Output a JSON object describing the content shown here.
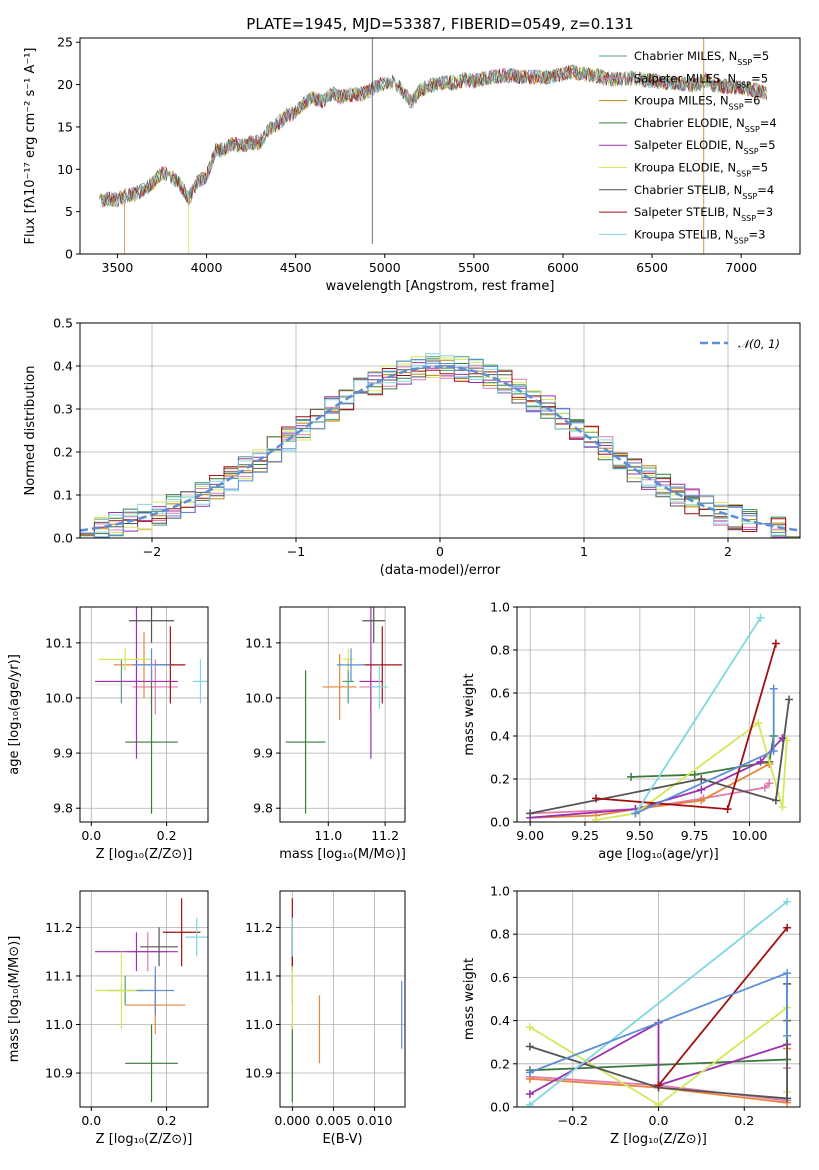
{
  "figure": {
    "title": "PLATE=1945, MJD=53387, FIBERID=0549, z=0.131"
  },
  "chart_data": [
    {
      "id": "spectrum",
      "type": "line",
      "xlabel": "wavelength [Angstrom, rest frame]",
      "ylabel": "Flux [fλ10⁻¹⁷ erg cm⁻² s⁻¹ A⁻¹]",
      "xlim": [
        3290,
        7330
      ],
      "ylim": [
        0,
        25.5
      ],
      "xticks": [
        3500,
        4000,
        4500,
        5000,
        5500,
        6000,
        6500,
        7000
      ],
      "yticks": [
        0,
        5,
        10,
        15,
        20,
        25
      ],
      "grid": false,
      "legend_position": "top-right",
      "legend": [
        {
          "name": "Chabrier MILES, N_SSP=5",
          "label_main": "Chabrier MILES, N",
          "label_sub": "SSP",
          "label_tail": "=5",
          "color": "#50a070"
        },
        {
          "name": "Salpeter MILES, N_SSP=5",
          "label_main": "Salpeter MILES, N",
          "label_sub": "SSP",
          "label_tail": "=5",
          "color": "#e07bb0"
        },
        {
          "name": "Kroupa MILES, N_SSP=6",
          "label_main": "Kroupa MILES, N",
          "label_sub": "SSP",
          "label_tail": "=6",
          "color": "#b8860b"
        },
        {
          "name": "Chabrier ELODIE, N_SSP=4",
          "label_main": "Chabrier ELODIE, N",
          "label_sub": "SSP",
          "label_tail": "=4",
          "color": "#3c7a3c"
        },
        {
          "name": "Salpeter ELODIE, N_SSP=5",
          "label_main": "Salpeter ELODIE, N",
          "label_sub": "SSP",
          "label_tail": "=5",
          "color": "#9b30b0"
        },
        {
          "name": "Kroupa ELODIE, N_SSP=5",
          "label_main": "Kroupa ELODIE, N",
          "label_sub": "SSP",
          "label_tail": "=5",
          "color": "#d4e85a"
        },
        {
          "name": "Chabrier STELIB, N_SSP=4",
          "label_main": "Chabrier STELIB, N",
          "label_sub": "SSP",
          "label_tail": "=4",
          "color": "#555555"
        },
        {
          "name": "Salpeter STELIB, N_SSP=3",
          "label_main": "Salpeter STELIB, N",
          "label_sub": "SSP",
          "label_tail": "=3",
          "color": "#a01010"
        },
        {
          "name": "Kroupa STELIB, N_SSP=3",
          "label_main": "Kroupa STELIB, N",
          "label_sub": "SSP",
          "label_tail": "=3",
          "color": "#80d8e0"
        }
      ],
      "x": [
        3400,
        3450,
        3500,
        3550,
        3600,
        3650,
        3700,
        3750,
        3800,
        3850,
        3900,
        3950,
        4000,
        4050,
        4100,
        4150,
        4200,
        4250,
        4300,
        4350,
        4400,
        4450,
        4500,
        4550,
        4600,
        4650,
        4700,
        4750,
        4800,
        4850,
        4900,
        4950,
        5000,
        5050,
        5100,
        5150,
        5200,
        5250,
        5300,
        5350,
        5400,
        5450,
        5500,
        5550,
        5600,
        5650,
        5700,
        5750,
        5800,
        5850,
        5900,
        5950,
        6000,
        6050,
        6100,
        6150,
        6200,
        6250,
        6300,
        6350,
        6400,
        6450,
        6500,
        6550,
        6600,
        6650,
        6700,
        6750,
        6800,
        6850,
        6900,
        6950,
        7000,
        7050,
        7100,
        7150
      ],
      "flux_mean": [
        6.2,
        6.5,
        6.4,
        6.9,
        7.1,
        7.6,
        8.4,
        9.6,
        9.2,
        8.3,
        6.5,
        8.6,
        9.2,
        12.2,
        12.4,
        13.0,
        12.8,
        13.1,
        13.2,
        14.6,
        15.4,
        16.3,
        16.7,
        17.8,
        18.5,
        18.0,
        19.0,
        18.5,
        18.8,
        18.8,
        19.1,
        19.8,
        20.2,
        20.3,
        19.2,
        17.9,
        19.4,
        19.8,
        20.1,
        20.3,
        20.2,
        20.6,
        20.4,
        20.7,
        20.9,
        21.0,
        21.1,
        20.9,
        20.9,
        20.9,
        20.8,
        21.0,
        21.2,
        21.5,
        21.3,
        21.1,
        21.0,
        20.7,
        20.6,
        20.7,
        20.8,
        20.5,
        20.5,
        20.3,
        20.2,
        20.1,
        20.0,
        19.9,
        20.5,
        19.9,
        19.8,
        19.8,
        19.6,
        19.5,
        19.2,
        18.9
      ]
    },
    {
      "id": "residuals",
      "type": "step",
      "xlabel": "(data-model)/error",
      "ylabel": "Normed distribution",
      "xlim": [
        -2.5,
        2.5
      ],
      "ylim": [
        0,
        0.5
      ],
      "xticks": [
        -2,
        -1,
        0,
        1,
        2
      ],
      "yticks": [
        0.0,
        0.1,
        0.2,
        0.3,
        0.4,
        0.5
      ],
      "grid": true,
      "legend_position": "top-right",
      "reference": {
        "name": "𝒩(0, 1)",
        "mean": 0,
        "sigma": 1,
        "color": "#5b8fd6"
      },
      "bin_width": 0.1
    },
    {
      "id": "age-vs-z",
      "type": "errorbar",
      "xlabel": "Z [log₁₀(Z/Z⊙)]",
      "ylabel": "age  [log₁₀(age/yr)]",
      "xlim": [
        -0.03,
        0.31
      ],
      "ylim": [
        9.775,
        10.165
      ],
      "xticks": [
        0.0,
        0.2
      ],
      "yticks": [
        9.8,
        9.9,
        10.0,
        10.1
      ],
      "points": [
        {
          "color": "#50a070",
          "x": 0.08,
          "xerr": 0.06,
          "y": 10.03,
          "yerr": 0.04
        },
        {
          "color": "#e07bb0",
          "x": 0.17,
          "xerr": 0.06,
          "y": 10.02,
          "yerr": 0.05
        },
        {
          "color": "#e8853a",
          "x": 0.14,
          "xerr": 0.08,
          "y": 10.06,
          "yerr": 0.06
        },
        {
          "color": "#3c7a3c",
          "x": 0.16,
          "xerr": 0.07,
          "y": 9.92,
          "yerr": 0.13
        },
        {
          "color": "#9b30b0",
          "x": 0.12,
          "xerr": 0.11,
          "y": 10.03,
          "yerr": 0.14
        },
        {
          "color": "#d4e85a",
          "x": 0.09,
          "xerr": 0.07,
          "y": 10.07,
          "yerr": 0.02
        },
        {
          "color": "#555555",
          "x": 0.16,
          "xerr": 0.06,
          "y": 10.14,
          "yerr": 0.04
        },
        {
          "color": "#a01010",
          "x": 0.21,
          "xerr": 0.04,
          "y": 10.06,
          "yerr": 0.07
        },
        {
          "color": "#80d8e0",
          "x": 0.29,
          "xerr": 0.02,
          "y": 10.03,
          "yerr": 0.04
        },
        {
          "color": "#5b8fd6",
          "x": 0.16,
          "xerr": 0.05,
          "y": 10.06,
          "yerr": 0.03
        }
      ]
    },
    {
      "id": "age-vs-mass",
      "type": "errorbar",
      "xlabel": "mass [log₁₀(M/M⊙)]",
      "ylabel": "",
      "xlim": [
        10.83,
        11.27
      ],
      "ylim": [
        9.775,
        10.165
      ],
      "xticks": [
        11.0,
        11.2
      ],
      "yticks": [
        9.8,
        9.9,
        10.0,
        10.1
      ],
      "points": [
        {
          "color": "#50a070",
          "x": 11.07,
          "xerr": 0.02,
          "y": 10.03,
          "yerr": 0.04
        },
        {
          "color": "#e07bb0",
          "x": 11.15,
          "xerr": 0.04,
          "y": 10.02,
          "yerr": 0.05
        },
        {
          "color": "#e8853a",
          "x": 11.04,
          "xerr": 0.06,
          "y": 10.02,
          "yerr": 0.06
        },
        {
          "color": "#3c7a3c",
          "x": 10.92,
          "xerr": 0.07,
          "y": 9.92,
          "yerr": 0.13
        },
        {
          "color": "#9b30b0",
          "x": 11.15,
          "xerr": 0.04,
          "y": 10.03,
          "yerr": 0.14
        },
        {
          "color": "#d4e85a",
          "x": 11.07,
          "xerr": 0.02,
          "y": 10.07,
          "yerr": 0.02
        },
        {
          "color": "#555555",
          "x": 11.16,
          "xerr": 0.04,
          "y": 10.14,
          "yerr": 0.04
        },
        {
          "color": "#a01010",
          "x": 11.19,
          "xerr": 0.07,
          "y": 10.06,
          "yerr": 0.07
        },
        {
          "color": "#80d8e0",
          "x": 11.18,
          "xerr": 0.03,
          "y": 10.02,
          "yerr": 0.04
        },
        {
          "color": "#5b8fd6",
          "x": 11.08,
          "xerr": 0.05,
          "y": 10.06,
          "yerr": 0.03
        }
      ]
    },
    {
      "id": "mass-weight-vs-age",
      "type": "line",
      "xlabel": "age  [log₁₀(age/yr)]",
      "ylabel": "mass weight",
      "xlim": [
        8.94,
        10.23
      ],
      "ylim": [
        0,
        1.0
      ],
      "xticks": [
        9.0,
        9.25,
        9.5,
        9.75,
        10.0
      ],
      "yticks": [
        0.0,
        0.2,
        0.4,
        0.6,
        0.8,
        1.0
      ],
      "grid": true,
      "series": [
        {
          "color": "#3c7a3c",
          "x": [
            9.46,
            9.75,
            10.09,
            10.11
          ],
          "y": [
            0.21,
            0.22,
            0.28,
            0.4
          ]
        },
        {
          "color": "#e07bb0",
          "x": [
            9.0,
            9.48,
            9.79,
            10.07,
            10.09
          ],
          "y": [
            0.04,
            0.06,
            0.11,
            0.16,
            0.18
          ]
        },
        {
          "color": "#e8853a",
          "x": [
            9.0,
            9.3,
            9.48,
            9.78,
            10.09
          ],
          "y": [
            0.02,
            0.03,
            0.06,
            0.1,
            0.27
          ]
        },
        {
          "color": "#9b30b0",
          "x": [
            9.0,
            9.48,
            9.78,
            10.05,
            10.15
          ],
          "y": [
            0.02,
            0.06,
            0.15,
            0.28,
            0.39
          ]
        },
        {
          "color": "#d4e85a",
          "x": [
            9.3,
            9.48,
            10.04,
            10.15,
            10.17
          ],
          "y": [
            0.01,
            0.04,
            0.46,
            0.07,
            0.38
          ]
        },
        {
          "color": "#555555",
          "x": [
            9.0,
            9.78,
            10.12,
            10.18
          ],
          "y": [
            0.04,
            0.2,
            0.1,
            0.57
          ]
        },
        {
          "color": "#a01010",
          "x": [
            9.3,
            9.9,
            10.12
          ],
          "y": [
            0.11,
            0.06,
            0.83
          ]
        },
        {
          "color": "#80d8e0",
          "x": [
            9.48,
            10.05
          ],
          "y": [
            0.04,
            0.95
          ]
        },
        {
          "color": "#5b8fd6",
          "x": [
            9.48,
            10.11,
            10.11
          ],
          "y": [
            0.04,
            0.33,
            0.62
          ]
        }
      ]
    },
    {
      "id": "mass-vs-z",
      "type": "errorbar",
      "xlabel": "Z [log₁₀(Z/Z⊙)]",
      "ylabel": "mass [log₁₀(M/M⊙)]",
      "xlim": [
        -0.03,
        0.31
      ],
      "ylim": [
        10.83,
        11.275
      ],
      "xticks": [
        0.0,
        0.2
      ],
      "yticks": [
        10.9,
        11.0,
        11.1,
        11.2
      ],
      "points": [
        {
          "color": "#50a070",
          "x": 0.09,
          "xerr": 0.05,
          "y": 11.07,
          "yerr": 0.03
        },
        {
          "color": "#e07bb0",
          "x": 0.15,
          "xerr": 0.05,
          "y": 11.15,
          "yerr": 0.04
        },
        {
          "color": "#e8853a",
          "x": 0.17,
          "xerr": 0.08,
          "y": 11.04,
          "yerr": 0.06
        },
        {
          "color": "#3c7a3c",
          "x": 0.16,
          "xerr": 0.07,
          "y": 10.92,
          "yerr": 0.08
        },
        {
          "color": "#9b30b0",
          "x": 0.12,
          "xerr": 0.11,
          "y": 11.15,
          "yerr": 0.04
        },
        {
          "color": "#d4e85a",
          "x": 0.08,
          "xerr": 0.07,
          "y": 11.07,
          "yerr": 0.08
        },
        {
          "color": "#555555",
          "x": 0.18,
          "xerr": 0.05,
          "y": 11.16,
          "yerr": 0.04
        },
        {
          "color": "#a01010",
          "x": 0.24,
          "xerr": 0.05,
          "y": 11.19,
          "yerr": 0.07
        },
        {
          "color": "#80d8e0",
          "x": 0.28,
          "xerr": 0.03,
          "y": 11.18,
          "yerr": 0.04
        },
        {
          "color": "#5b8fd6",
          "x": 0.17,
          "xerr": 0.05,
          "y": 11.07,
          "yerr": 0.05
        }
      ]
    },
    {
      "id": "mass-vs-ebv",
      "type": "errorbar",
      "xlabel": "E(B-V)",
      "ylabel": "",
      "xlim": [
        -0.0015,
        0.0137
      ],
      "ylim": [
        10.83,
        11.275
      ],
      "xticks": [
        0.0,
        0.005,
        0.01
      ],
      "xtick_labels": [
        "0.000",
        "0.005",
        "0.010"
      ],
      "yticks": [
        10.9,
        11.0,
        11.1,
        11.2
      ],
      "points": [
        {
          "color": "#50a070",
          "x": 0.0,
          "xerr": 0.0,
          "y": 11.07,
          "yerr": 0.03
        },
        {
          "color": "#e07bb0",
          "x": 0.0,
          "xerr": 0.0,
          "y": 11.15,
          "yerr": 0.04
        },
        {
          "color": "#e8853a",
          "x": 0.0033,
          "xerr": 0.0,
          "y": 10.99,
          "yerr": 0.07
        },
        {
          "color": "#3c7a3c",
          "x": 0.0,
          "xerr": 0.0,
          "y": 10.92,
          "yerr": 0.08
        },
        {
          "color": "#9b30b0",
          "x": 0.0,
          "xerr": 0.0,
          "y": 11.15,
          "yerr": 0.04
        },
        {
          "color": "#d4e85a",
          "x": 0.0,
          "xerr": 0.0,
          "y": 11.07,
          "yerr": 0.08
        },
        {
          "color": "#555555",
          "x": 0.0,
          "xerr": 0.0,
          "y": 11.16,
          "yerr": 0.04
        },
        {
          "color": "#a01010",
          "x": 0.0,
          "xerr": 0.0,
          "y": 11.19,
          "yerr": 0.07
        },
        {
          "color": "#80d8e0",
          "x": 0.0,
          "xerr": 0.0,
          "y": 11.18,
          "yerr": 0.04
        },
        {
          "color": "#5b8fd6",
          "x": 0.0133,
          "xerr": 0.0,
          "y": 11.02,
          "yerr": 0.07
        }
      ]
    },
    {
      "id": "mass-weight-vs-z",
      "type": "line",
      "xlabel": "Z [log₁₀(Z/Z⊙)]",
      "ylabel": "mass weight",
      "xlim": [
        -0.33,
        0.33
      ],
      "ylim": [
        0,
        1.0
      ],
      "xticks": [
        -0.2,
        0.0,
        0.2
      ],
      "yticks": [
        0.0,
        0.2,
        0.4,
        0.6,
        0.8,
        1.0
      ],
      "grid": true,
      "series": [
        {
          "color": "#3c7a3c",
          "x": [
            -0.3,
            0.3,
            0.3
          ],
          "y": [
            0.17,
            0.22,
            0.4
          ]
        },
        {
          "color": "#e07bb0",
          "x": [
            -0.3,
            0.0,
            0.3,
            0.3
          ],
          "y": [
            0.14,
            0.1,
            0.03,
            0.18
          ]
        },
        {
          "color": "#e8853a",
          "x": [
            -0.3,
            0.0,
            0.3,
            0.3
          ],
          "y": [
            0.13,
            0.09,
            0.02,
            0.27
          ]
        },
        {
          "color": "#9b30b0",
          "x": [
            -0.3,
            0.0,
            0.0,
            0.3
          ],
          "y": [
            0.06,
            0.39,
            0.1,
            0.29
          ]
        },
        {
          "color": "#d4e85a",
          "x": [
            -0.3,
            0.0,
            0.3,
            0.3
          ],
          "y": [
            0.37,
            0.01,
            0.46,
            0.07
          ]
        },
        {
          "color": "#555555",
          "x": [
            -0.3,
            0.0,
            0.3,
            0.3
          ],
          "y": [
            0.28,
            0.09,
            0.04,
            0.57
          ]
        },
        {
          "color": "#a01010",
          "x": [
            0.0,
            0.3
          ],
          "y": [
            0.1,
            0.83
          ]
        },
        {
          "color": "#80d8e0",
          "x": [
            -0.3,
            0.3
          ],
          "y": [
            0.01,
            0.95
          ]
        },
        {
          "color": "#5b8fd6",
          "x": [
            -0.3,
            0.3,
            0.3
          ],
          "y": [
            0.16,
            0.62,
            0.33
          ]
        }
      ]
    }
  ]
}
